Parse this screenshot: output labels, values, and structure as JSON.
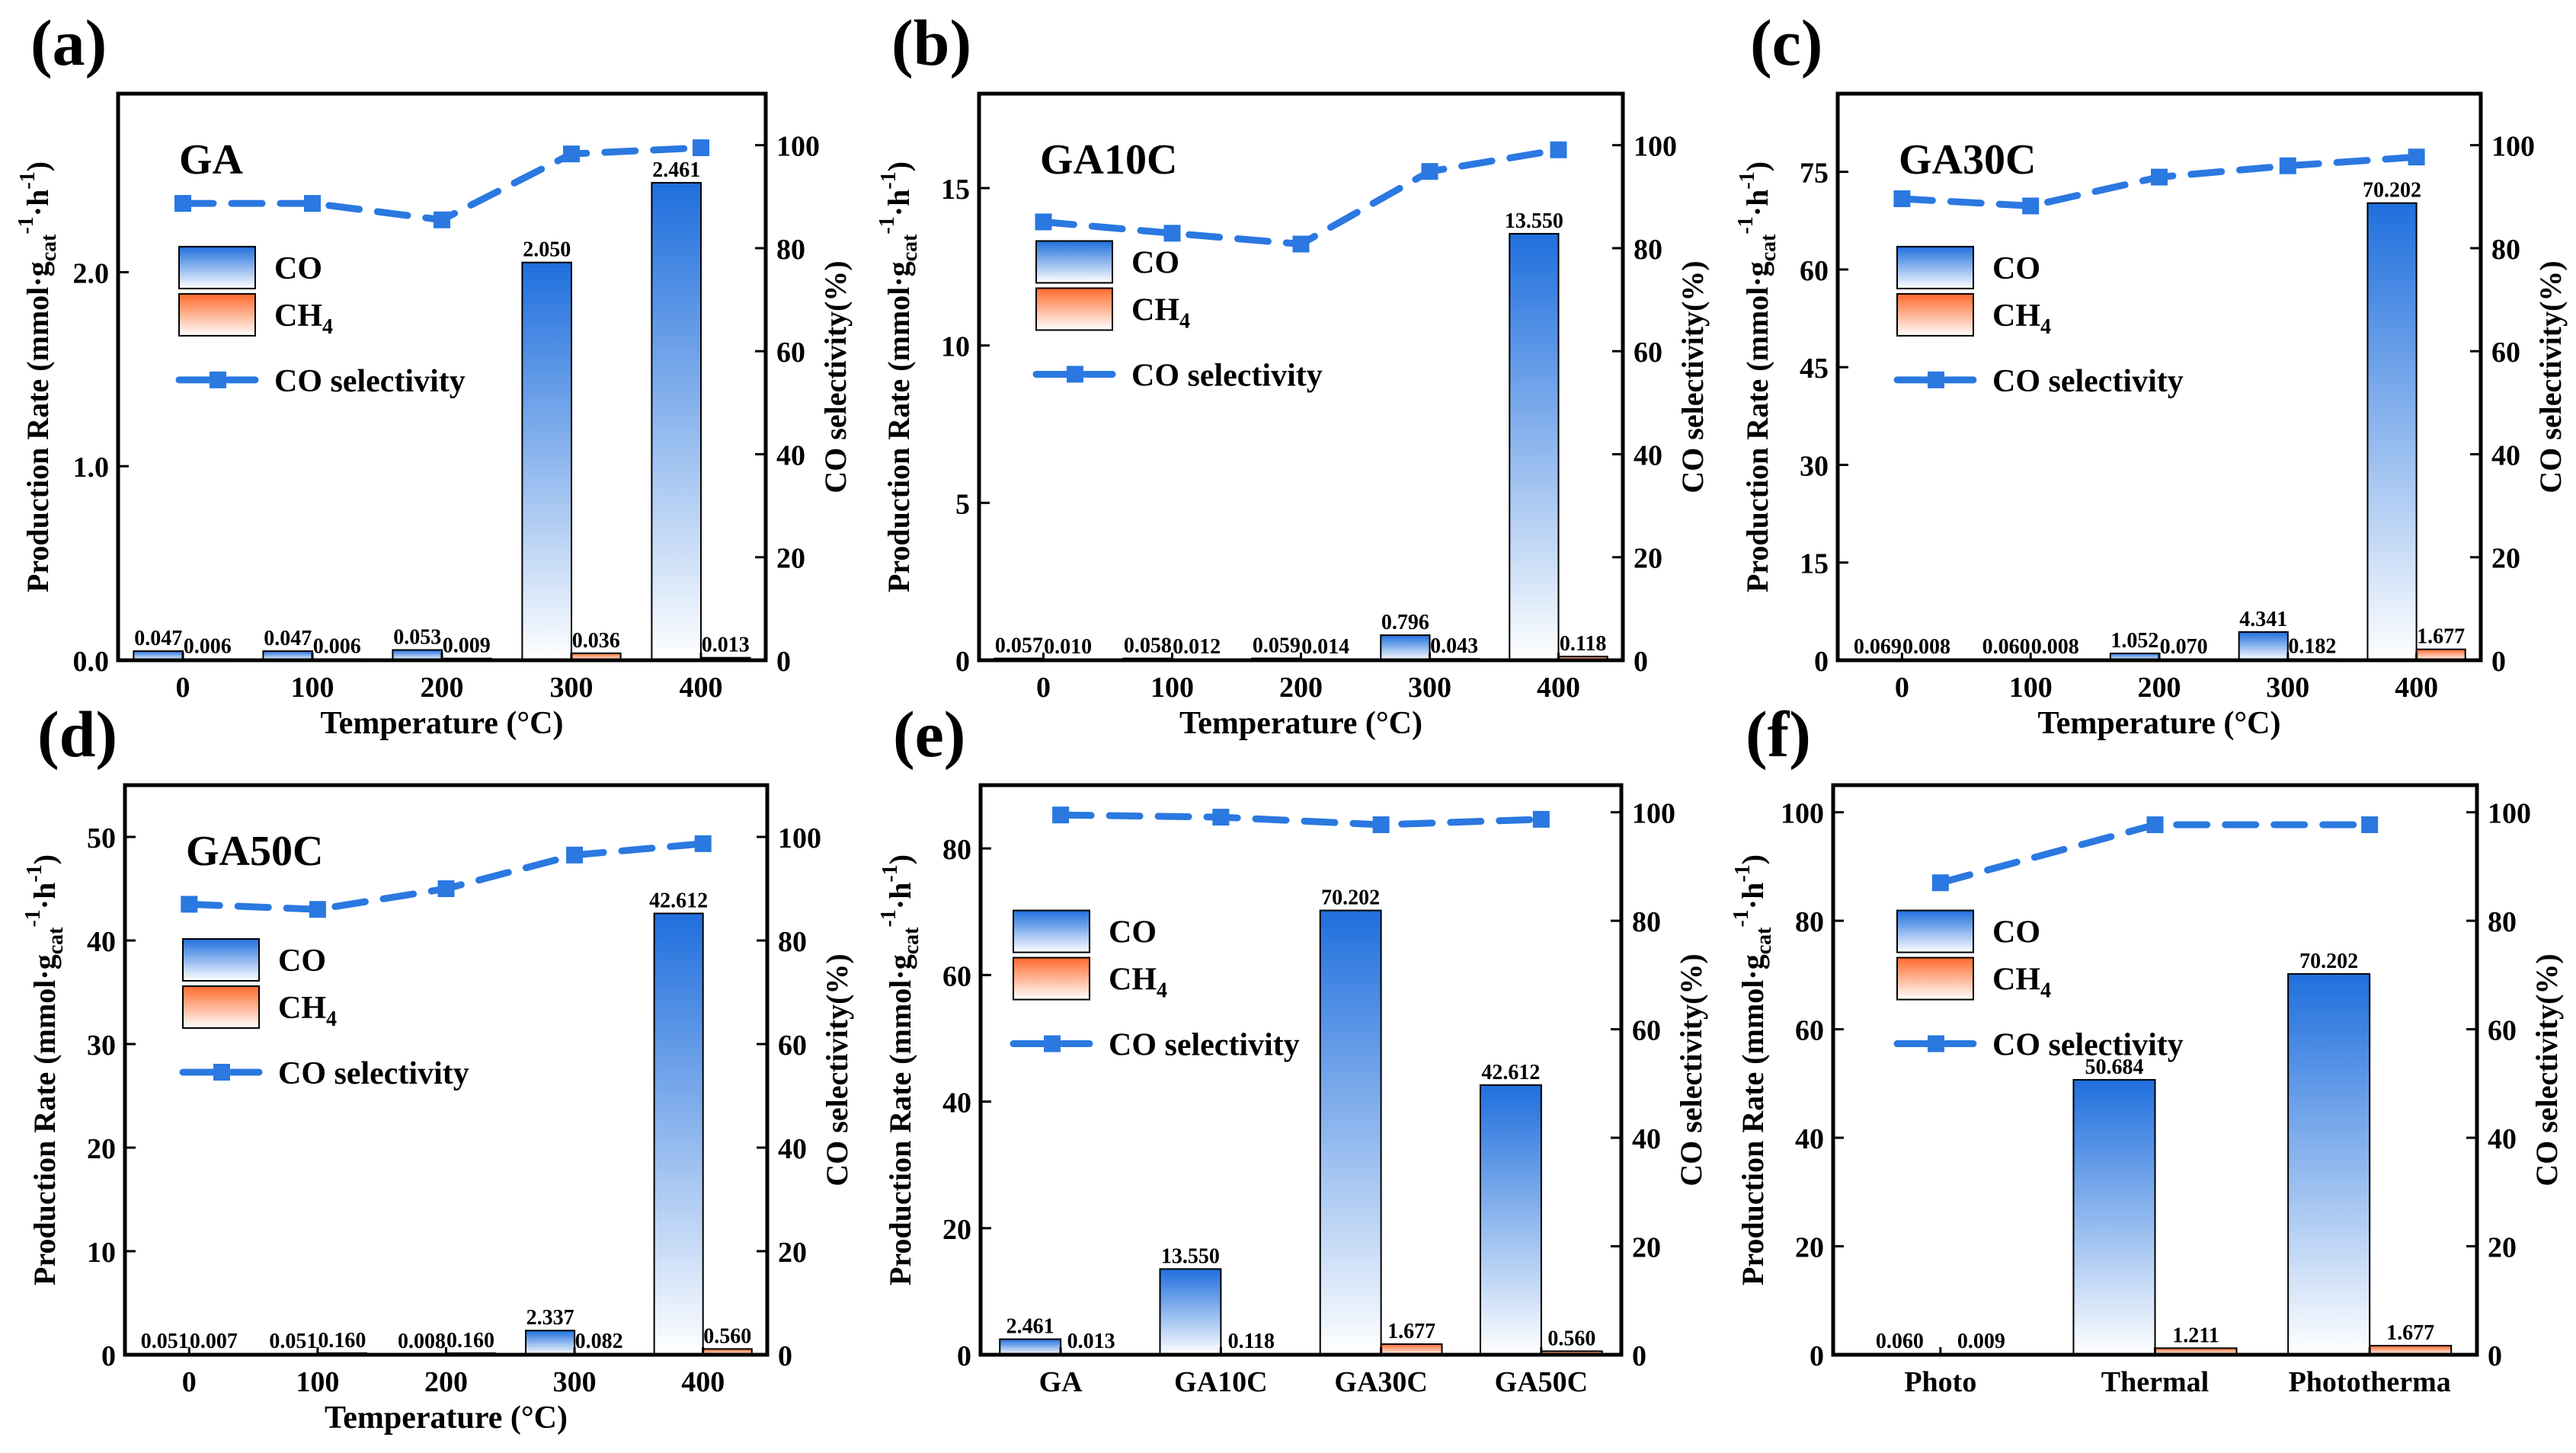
{
  "colors": {
    "co_top": "#1f6fdd",
    "co_bottom": "#ffffff",
    "ch4_top": "#ff6a2a",
    "ch4_bottom": "#ffffff",
    "line": "#2a78e0"
  },
  "ylabel_parts": {
    "main": "Production Rate (mmol·g",
    "sub": "cat",
    "sup1": "-1",
    "mid": "·h",
    "sup2": "-1",
    "end": ")"
  },
  "y2label": "CO selectivity(%)",
  "legend": {
    "co": "CO",
    "ch4_main": "CH",
    "ch4_sub": "4",
    "sel": "CO selectivity"
  },
  "chart_data": [
    {
      "letter": "(a)",
      "title": "GA",
      "type": "bar",
      "xlabel": "Temperature (°C)",
      "categories": [
        "0",
        "100",
        "200",
        "300",
        "400"
      ],
      "series": [
        {
          "name": "CO",
          "values": [
            0.047,
            0.047,
            0.053,
            2.05,
            2.461
          ],
          "labels": [
            "0.047",
            "0.047",
            "0.053",
            "2.050",
            "2.461"
          ]
        },
        {
          "name": "CH4",
          "values": [
            0.006,
            0.006,
            0.009,
            0.036,
            0.013
          ],
          "labels": [
            "0.006",
            "0.006",
            "0.009",
            "0.036",
            "0.013"
          ]
        },
        {
          "name": "CO selectivity",
          "values": [
            88.7,
            88.7,
            85.5,
            98.3,
            99.5
          ]
        }
      ],
      "ylim": [
        0,
        2.92
      ],
      "yticks": [
        "0.0",
        "1.0",
        "2.0"
      ],
      "ytick_values": [
        0,
        1,
        2
      ],
      "y2lim": [
        0,
        110
      ],
      "y2ticks": [
        0,
        20,
        40,
        60,
        80,
        100
      ]
    },
    {
      "letter": "(b)",
      "title": "GA10C",
      "type": "bar",
      "xlabel": "Temperature (°C)",
      "categories": [
        "0",
        "100",
        "200",
        "300",
        "400"
      ],
      "series": [
        {
          "name": "CO",
          "values": [
            0.057,
            0.058,
            0.059,
            0.796,
            13.55
          ],
          "labels": [
            "0.057",
            "0.058",
            "0.059",
            "0.796",
            "13.550"
          ]
        },
        {
          "name": "CH4",
          "values": [
            0.01,
            0.012,
            0.014,
            0.043,
            0.118
          ],
          "labels": [
            "0.010",
            "0.012",
            "0.014",
            "0.043",
            "0.118"
          ]
        },
        {
          "name": "CO selectivity",
          "values": [
            85.1,
            82.9,
            80.8,
            94.9,
            99.1
          ]
        }
      ],
      "ylim": [
        0,
        18
      ],
      "yticks": [
        "0",
        "5",
        "10",
        "15"
      ],
      "ytick_values": [
        0,
        5,
        10,
        15
      ],
      "y2lim": [
        0,
        110
      ],
      "y2ticks": [
        0,
        20,
        40,
        60,
        80,
        100
      ]
    },
    {
      "letter": "(c)",
      "title": "GA30C",
      "type": "bar",
      "xlabel": "Temperature (°C)",
      "categories": [
        "0",
        "100",
        "200",
        "300",
        "400"
      ],
      "series": [
        {
          "name": "CO",
          "values": [
            0.069,
            0.06,
            1.052,
            4.341,
            70.202
          ],
          "labels": [
            "0.069",
            "0.060",
            "1.052",
            "4.341",
            "70.202"
          ]
        },
        {
          "name": "CH4",
          "values": [
            0.008,
            0.008,
            0.07,
            0.182,
            1.677
          ],
          "labels": [
            "0.008",
            "0.008",
            "0.070",
            "0.182",
            "1.677"
          ]
        },
        {
          "name": "CO selectivity",
          "values": [
            89.6,
            88.2,
            93.8,
            96.0,
            97.7
          ]
        }
      ],
      "ylim": [
        0,
        87
      ],
      "yticks": [
        "0",
        "15",
        "30",
        "45",
        "60",
        "75"
      ],
      "ytick_values": [
        0,
        15,
        30,
        45,
        60,
        75
      ],
      "y2lim": [
        0,
        110
      ],
      "y2ticks": [
        0,
        20,
        40,
        60,
        80,
        100
      ]
    },
    {
      "letter": "(d)",
      "title": "GA50C",
      "type": "bar",
      "xlabel": "Temperature (°C)",
      "categories": [
        "0",
        "100",
        "200",
        "300",
        "400"
      ],
      "series": [
        {
          "name": "CO",
          "values": [
            0.051,
            0.051,
            0.008,
            2.337,
            42.612
          ],
          "labels": [
            "0.051",
            "0.051",
            "0.008",
            "2.337",
            "42.612"
          ]
        },
        {
          "name": "CH4",
          "values": [
            0.007,
            0.16,
            0.16,
            0.082,
            0.56
          ],
          "labels": [
            "0.007",
            "0.160",
            "0.160",
            "0.082",
            "0.560"
          ]
        },
        {
          "name": "CO selectivity",
          "values": [
            87.0,
            86.0,
            90.0,
            96.5,
            98.7
          ]
        }
      ],
      "ylim": [
        0,
        55
      ],
      "yticks": [
        "0",
        "10",
        "20",
        "30",
        "40",
        "50"
      ],
      "ytick_values": [
        0,
        10,
        20,
        30,
        40,
        50
      ],
      "y2lim": [
        0,
        110
      ],
      "y2ticks": [
        0,
        20,
        40,
        60,
        80,
        100
      ]
    },
    {
      "letter": "(e)",
      "title": "",
      "type": "bar",
      "xlabel": "",
      "categories": [
        "GA",
        "GA10C",
        "GA30C",
        "GA50C"
      ],
      "series": [
        {
          "name": "CO",
          "values": [
            2.461,
            13.55,
            70.202,
            42.612
          ],
          "labels": [
            "2.461",
            "13.550",
            "70.202",
            "42.612"
          ]
        },
        {
          "name": "CH4",
          "values": [
            0.013,
            0.118,
            1.677,
            0.56
          ],
          "labels": [
            "0.013",
            "0.118",
            "1.677",
            "0.560"
          ]
        },
        {
          "name": "CO selectivity",
          "values": [
            99.5,
            99.1,
            97.7,
            98.7
          ]
        }
      ],
      "ylim": [
        0,
        90
      ],
      "yticks": [
        "0",
        "20",
        "40",
        "60",
        "80"
      ],
      "ytick_values": [
        0,
        20,
        40,
        60,
        80
      ],
      "y2lim": [
        0,
        105
      ],
      "y2ticks": [
        0,
        20,
        40,
        60,
        80,
        100
      ]
    },
    {
      "letter": "(f)",
      "title": "",
      "type": "bar",
      "xlabel": "",
      "categories": [
        "Photo",
        "Thermal",
        "Phototherma"
      ],
      "series": [
        {
          "name": "CO",
          "values": [
            0.06,
            50.684,
            70.202
          ],
          "labels": [
            "0.060",
            "50.684",
            "70.202"
          ]
        },
        {
          "name": "CH4",
          "values": [
            0.009,
            1.211,
            1.677
          ],
          "labels": [
            "0.009",
            "1.211",
            "1.677"
          ]
        },
        {
          "name": "CO selectivity",
          "values": [
            87.0,
            97.7,
            97.7
          ]
        }
      ],
      "ylim": [
        0,
        105
      ],
      "yticks": [
        "0",
        "20",
        "40",
        "60",
        "80",
        "100"
      ],
      "ytick_values": [
        0,
        20,
        40,
        60,
        80,
        100
      ],
      "y2lim": [
        0,
        105
      ],
      "y2ticks": [
        0,
        20,
        40,
        60,
        80,
        100
      ]
    }
  ]
}
